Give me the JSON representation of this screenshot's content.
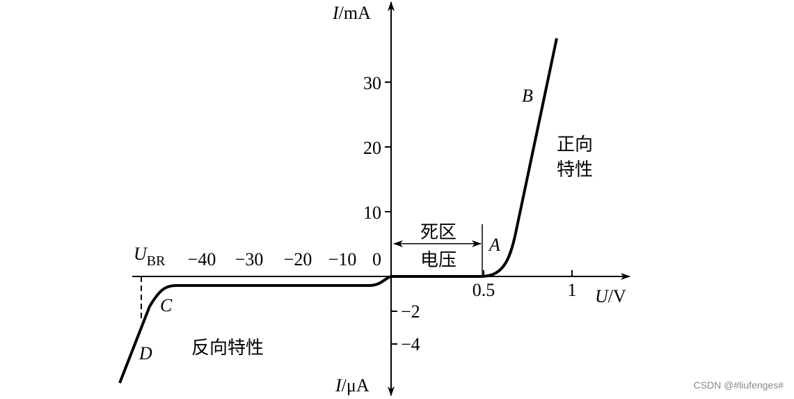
{
  "axes": {
    "y_positive": {
      "symbol": "I",
      "unit": "/mA",
      "ticks": [
        "30",
        "20",
        "10",
        "0"
      ]
    },
    "y_negative": {
      "symbol": "I",
      "unit": "/μA",
      "ticks": [
        "−2",
        "−4"
      ]
    },
    "x": {
      "symbol": "U",
      "unit": "/V",
      "positive_ticks": [
        "0.5",
        "1"
      ],
      "negative_ticks": [
        "−40",
        "−30",
        "−20",
        "−10"
      ]
    },
    "breakdown": {
      "symbol": "U",
      "subscript": "BR"
    }
  },
  "points": [
    "A",
    "B",
    "C",
    "D"
  ],
  "regions": {
    "dead_zone": [
      "死区",
      "电压"
    ],
    "forward": [
      "正向",
      "特性"
    ],
    "reverse": "反向特性"
  },
  "watermark": "CSDN @#liufenges#"
}
